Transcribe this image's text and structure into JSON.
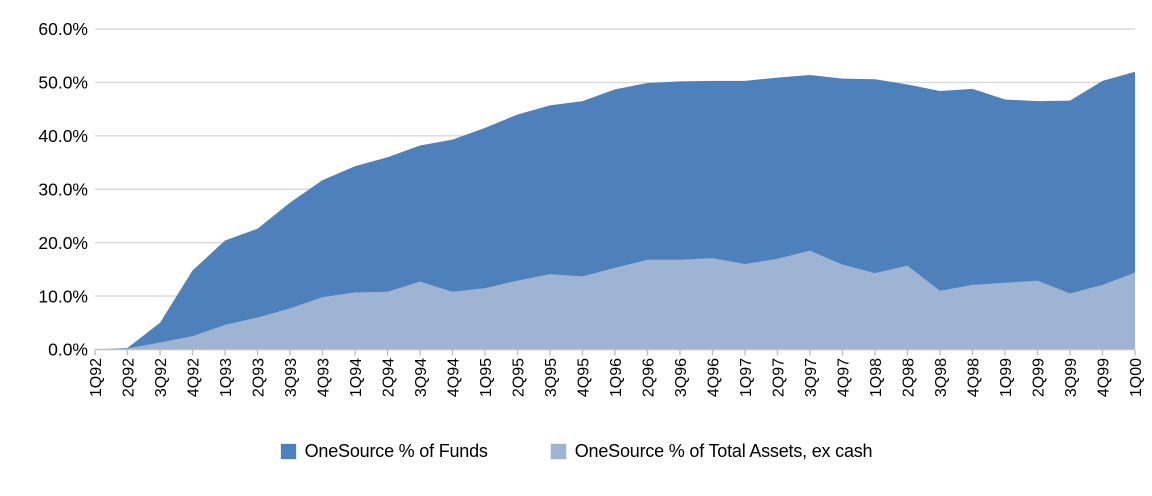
{
  "chart_data": {
    "type": "area",
    "title": "",
    "xlabel": "",
    "ylabel": "",
    "categories": [
      "1Q92",
      "2Q92",
      "3Q92",
      "4Q92",
      "1Q93",
      "2Q93",
      "3Q93",
      "4Q93",
      "1Q94",
      "2Q94",
      "3Q94",
      "4Q94",
      "1Q95",
      "2Q95",
      "3Q95",
      "4Q95",
      "1Q96",
      "2Q96",
      "3Q96",
      "4Q96",
      "1Q97",
      "2Q97",
      "3Q97",
      "4Q97",
      "1Q98",
      "2Q98",
      "3Q98",
      "4Q98",
      "1Q99",
      "2Q99",
      "3Q99",
      "4Q99",
      "1Q00"
    ],
    "series": [
      {
        "name": "OneSource % of Funds",
        "color": "#4E81BC",
        "values": [
          0,
          0.3,
          5.0,
          14.8,
          20.4,
          22.6,
          27.5,
          31.7,
          34.3,
          36.0,
          38.2,
          39.3,
          41.5,
          44.0,
          45.7,
          46.5,
          48.7,
          49.9,
          50.2,
          50.3,
          50.3,
          50.9,
          51.4,
          50.7,
          50.6,
          49.6,
          48.4,
          48.8,
          46.8,
          46.5,
          46.6,
          50.3,
          52.0
        ]
      },
      {
        "name": "OneSource % of Total Assets, ex cash",
        "color": "#9FB3D2",
        "values": [
          0,
          0.2,
          1.3,
          2.5,
          4.6,
          6.0,
          7.7,
          9.8,
          10.7,
          10.8,
          12.7,
          10.8,
          11.5,
          12.9,
          14.1,
          13.7,
          15.3,
          16.8,
          16.8,
          17.1,
          16.0,
          17.0,
          18.5,
          15.9,
          14.3,
          15.7,
          11.0,
          12.1,
          12.5,
          12.9,
          10.5,
          12.1,
          14.4
        ]
      }
    ],
    "y_ticks": [
      "0.0%",
      "10.0%",
      "20.0%",
      "30.0%",
      "40.0%",
      "50.0%",
      "60.0%"
    ],
    "ylim": [
      0,
      60
    ],
    "grid": "horizontal",
    "legend_position": "bottom",
    "colors": {
      "gridline": "#D9D9D9",
      "axis": "#BFBFBF",
      "text": "#000000",
      "background": "#FFFFFF"
    }
  }
}
